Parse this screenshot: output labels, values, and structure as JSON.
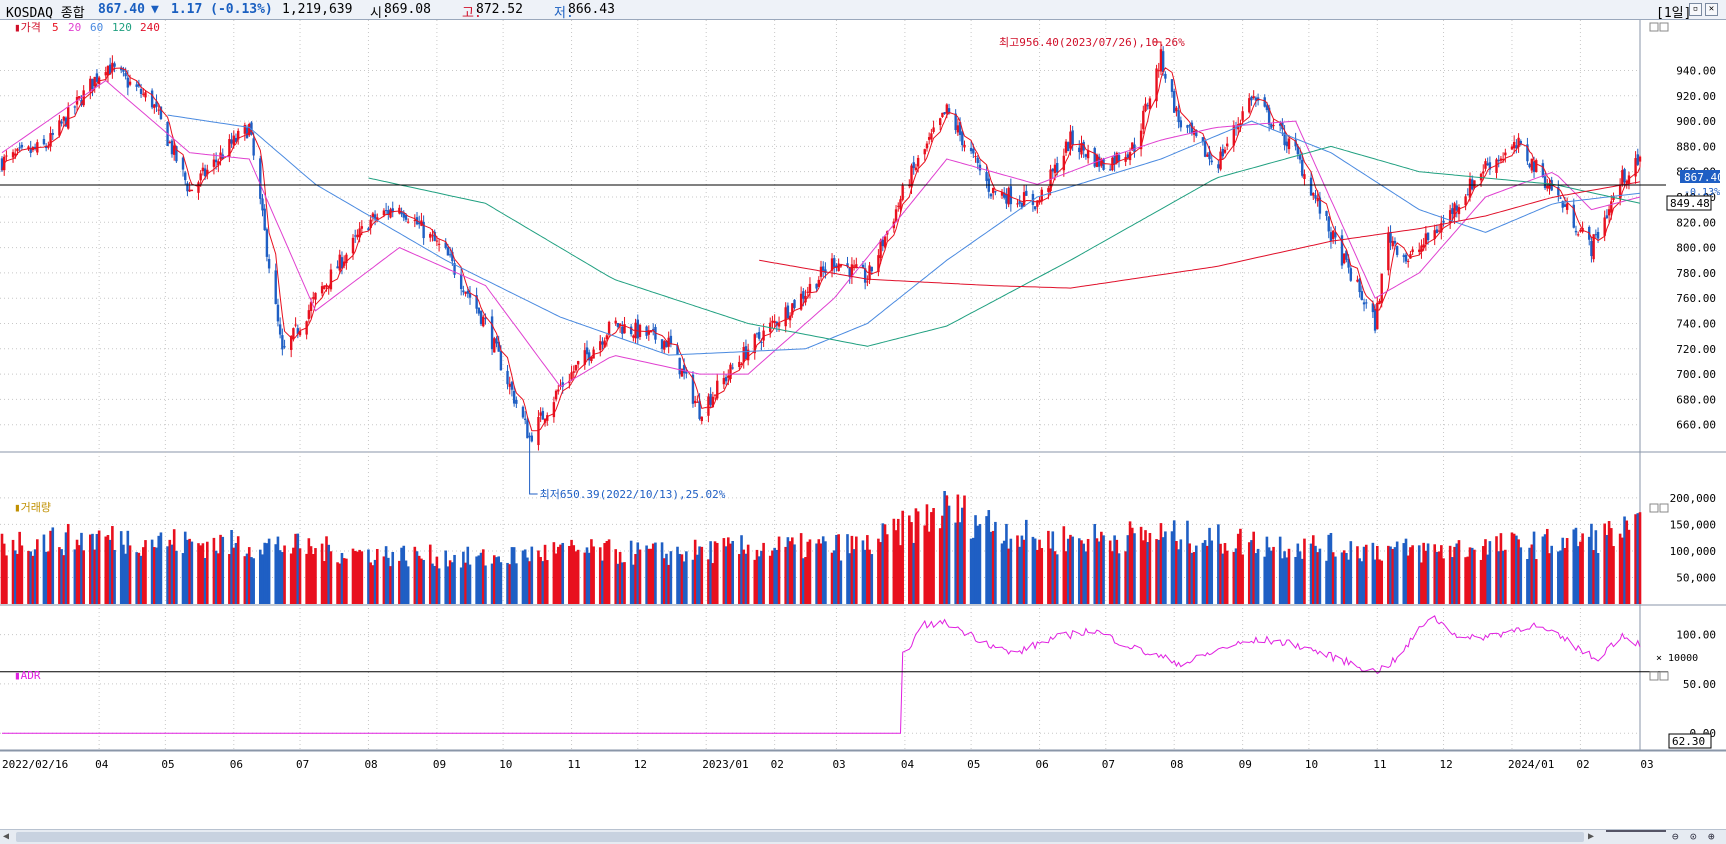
{
  "header": {
    "name": "KOSDAQ 종합",
    "price": "867.40",
    "arrow": "▼",
    "change": "1.17 (-0.13%)",
    "volume": "1,219,639",
    "open_label": "시:",
    "open": "869.08",
    "high_label": "고:",
    "high": "872.52",
    "low_label": "저:",
    "low": "866.43",
    "period": "[1일]"
  },
  "colors": {
    "up": "#e8101e",
    "down": "#1f5fc4",
    "ma5": "#e8101e",
    "ma20": "#e040d0",
    "ma60": "#4a8ae0",
    "ma120": "#20a080",
    "ma240": "#e0102a",
    "adr": "#e020e0",
    "grid": "#c8c8c8"
  },
  "legend": {
    "price": "가격",
    "ma": [
      "5",
      "20",
      "60",
      "120",
      "240"
    ]
  },
  "x_labels": [
    "2022/02/16",
    "04",
    "05",
    "06",
    "07",
    "08",
    "09",
    "10",
    "11",
    "12",
    "2023/01",
    "02",
    "03",
    "04",
    "05",
    "06",
    "07",
    "08",
    "09",
    "10",
    "11",
    "12",
    "2024/01",
    "02",
    "03"
  ],
  "chart_data": [
    {
      "type": "candlestick",
      "title": "가격",
      "y_ticks": [
        660,
        680,
        700,
        720,
        740,
        760,
        780,
        800,
        820,
        840,
        860,
        880,
        900,
        920,
        940
      ],
      "y_tick_labels": [
        "660.00",
        "680.00",
        "700.00",
        "720.00",
        "740.00",
        "760.00",
        "780.00",
        "800.00",
        "820.00",
        "840.00",
        "860.00",
        "880.00",
        "900.00",
        "920.00",
        "940.00"
      ],
      "ylim": [
        640,
        972
      ],
      "start_date": "2022/02/16",
      "end_date": "2024/02/28",
      "price_anchors": [
        [
          "2022/02/16",
          868
        ],
        [
          "2022/03/08",
          880
        ],
        [
          "2022/04/04",
          945
        ],
        [
          "2022/04/25",
          915
        ],
        [
          "2022/05/12",
          845
        ],
        [
          "2022/05/30",
          880
        ],
        [
          "2022/06/08",
          895
        ],
        [
          "2022/06/23",
          715
        ],
        [
          "2022/07/08",
          760
        ],
        [
          "2022/08/01",
          820
        ],
        [
          "2022/08/15",
          833
        ],
        [
          "2022/09/05",
          795
        ],
        [
          "2022/09/23",
          740
        ],
        [
          "2022/10/13",
          650
        ],
        [
          "2022/10/27",
          690
        ],
        [
          "2022/11/20",
          740
        ],
        [
          "2022/12/15",
          725
        ],
        [
          "2022/12/29",
          671
        ],
        [
          "2023/01/20",
          720
        ],
        [
          "2023/02/15",
          765
        ],
        [
          "2023/02/28",
          790
        ],
        [
          "2023/03/15",
          775
        ],
        [
          "2023/04/03",
          855
        ],
        [
          "2023/04/20",
          908
        ],
        [
          "2023/05/10",
          845
        ],
        [
          "2023/05/31",
          835
        ],
        [
          "2023/06/15",
          885
        ],
        [
          "2023/06/30",
          865
        ],
        [
          "2023/07/14",
          880
        ],
        [
          "2023/07/26",
          950
        ],
        [
          "2023/08/03",
          900
        ],
        [
          "2023/08/20",
          865
        ],
        [
          "2023/09/05",
          920
        ],
        [
          "2023/09/25",
          875
        ],
        [
          "2023/10/11",
          810
        ],
        [
          "2023/10/31",
          740
        ],
        [
          "2023/11/06",
          810
        ],
        [
          "2023/11/15",
          790
        ],
        [
          "2023/12/01",
          820
        ],
        [
          "2023/12/20",
          865
        ],
        [
          "2024/01/04",
          880
        ],
        [
          "2024/01/20",
          845
        ],
        [
          "2024/02/06",
          800
        ],
        [
          "2024/02/20",
          855
        ],
        [
          "2024/02/28",
          867.4
        ]
      ],
      "ma_anchors": {
        "ma20": [
          [
            "2022/02/16",
            875
          ],
          [
            "2022/04/04",
            932
          ],
          [
            "2022/05/12",
            875
          ],
          [
            "2022/06/08",
            870
          ],
          [
            "2022/07/08",
            750
          ],
          [
            "2022/08/15",
            800
          ],
          [
            "2022/09/23",
            770
          ],
          [
            "2022/10/27",
            690
          ],
          [
            "2022/11/20",
            715
          ],
          [
            "2022/12/29",
            700
          ],
          [
            "2023/01/20",
            700
          ],
          [
            "2023/02/28",
            760
          ],
          [
            "2023/04/20",
            870
          ],
          [
            "2023/05/31",
            850
          ],
          [
            "2023/06/30",
            870
          ],
          [
            "2023/07/26",
            885
          ],
          [
            "2023/08/20",
            895
          ],
          [
            "2023/09/25",
            900
          ],
          [
            "2023/10/31",
            760
          ],
          [
            "2023/11/20",
            780
          ],
          [
            "2023/12/20",
            840
          ],
          [
            "2024/01/20",
            860
          ],
          [
            "2024/02/06",
            830
          ],
          [
            "2024/02/28",
            840
          ]
        ],
        "ma60": [
          [
            "2022/05/01",
            905
          ],
          [
            "2022/06/08",
            895
          ],
          [
            "2022/07/08",
            850
          ],
          [
            "2022/09/05",
            790
          ],
          [
            "2022/10/27",
            745
          ],
          [
            "2022/12/15",
            715
          ],
          [
            "2023/02/15",
            720
          ],
          [
            "2023/03/15",
            740
          ],
          [
            "2023/04/20",
            790
          ],
          [
            "2023/05/31",
            840
          ],
          [
            "2023/07/26",
            870
          ],
          [
            "2023/09/05",
            900
          ],
          [
            "2023/10/11",
            875
          ],
          [
            "2023/11/20",
            830
          ],
          [
            "2023/12/20",
            812
          ],
          [
            "2024/01/20",
            835
          ],
          [
            "2024/02/28",
            843
          ]
        ],
        "ma120": [
          [
            "2022/08/01",
            855
          ],
          [
            "2022/09/23",
            835
          ],
          [
            "2022/11/20",
            775
          ],
          [
            "2023/01/20",
            740
          ],
          [
            "2023/03/15",
            722
          ],
          [
            "2023/04/20",
            738
          ],
          [
            "2023/06/15",
            790
          ],
          [
            "2023/08/20",
            855
          ],
          [
            "2023/10/11",
            880
          ],
          [
            "2023/11/20",
            860
          ],
          [
            "2023/12/20",
            855
          ],
          [
            "2024/01/20",
            850
          ],
          [
            "2024/02/28",
            835
          ]
        ],
        "ma240": [
          [
            "2023/01/25",
            790
          ],
          [
            "2023/03/15",
            775
          ],
          [
            "2023/05/10",
            770
          ],
          [
            "2023/06/15",
            768
          ],
          [
            "2023/08/20",
            785
          ],
          [
            "2023/10/11",
            805
          ],
          [
            "2023/11/20",
            815
          ],
          [
            "2023/12/20",
            825
          ],
          [
            "2024/01/20",
            840
          ],
          [
            "2024/02/28",
            852
          ]
        ]
      },
      "hline": 849.48,
      "hline_label": "849.48",
      "last_label": "867.40",
      "last_change": "-0.13%",
      "max_annotation": "최고956.40(2023/07/26),10.26%",
      "min_annotation": "최저650.39(2022/10/13),25.02%",
      "max_value": 956.4,
      "max_date": "2023/07/26",
      "min_value": 650.39,
      "min_date": "2022/10/13"
    },
    {
      "type": "bar",
      "title": "거래량",
      "y_ticks": [
        50000,
        100000,
        150000,
        200000
      ],
      "y_tick_labels": [
        "50,000",
        "100,000",
        "150,000",
        "200,000"
      ],
      "unit_label": "× 10000",
      "ylim": [
        0,
        230000
      ],
      "volume_anchors": [
        [
          "2022/02/16",
          115000
        ],
        [
          "2022/04/04",
          125000
        ],
        [
          "2022/05/12",
          115000
        ],
        [
          "2022/06/23",
          110000
        ],
        [
          "2022/08/01",
          95000
        ],
        [
          "2022/09/23",
          85000
        ],
        [
          "2022/10/27",
          100000
        ],
        [
          "2022/12/15",
          95000
        ],
        [
          "2023/01/20",
          105000
        ],
        [
          "2023/03/15",
          110000
        ],
        [
          "2023/04/20",
          180000
        ],
        [
          "2023/05/31",
          120000
        ],
        [
          "2023/07/26",
          130000
        ],
        [
          "2023/09/25",
          110000
        ],
        [
          "2023/11/20",
          100000
        ],
        [
          "2024/01/20",
          115000
        ],
        [
          "2024/02/28",
          140000
        ]
      ]
    },
    {
      "type": "line",
      "title": "ADR",
      "y_ticks": [
        0,
        50,
        100
      ],
      "y_tick_labels": [
        "0.00",
        "50.00",
        "100.00"
      ],
      "ylim": [
        -15,
        125
      ],
      "hline": 62.3,
      "hline_label": "62.30",
      "adr_anchors": [
        [
          "2022/02/16",
          0
        ],
        [
          "2023/03/30",
          0
        ],
        [
          "2023/03/31",
          80
        ],
        [
          "2023/04/10",
          110
        ],
        [
          "2023/04/20",
          112
        ],
        [
          "2023/05/05",
          95
        ],
        [
          "2023/05/20",
          80
        ],
        [
          "2023/06/05",
          95
        ],
        [
          "2023/06/25",
          105
        ],
        [
          "2023/07/15",
          85
        ],
        [
          "2023/08/05",
          70
        ],
        [
          "2023/08/25",
          88
        ],
        [
          "2023/09/10",
          95
        ],
        [
          "2023/09/25",
          90
        ],
        [
          "2023/10/15",
          75
        ],
        [
          "2023/10/31",
          62
        ],
        [
          "2023/11/10",
          75
        ],
        [
          "2023/11/25",
          120
        ],
        [
          "2023/12/10",
          95
        ],
        [
          "2023/12/25",
          100
        ],
        [
          "2024/01/10",
          110
        ],
        [
          "2024/01/25",
          95
        ],
        [
          "2024/02/08",
          75
        ],
        [
          "2024/02/20",
          100
        ],
        [
          "2024/02/28",
          90
        ]
      ]
    }
  ]
}
